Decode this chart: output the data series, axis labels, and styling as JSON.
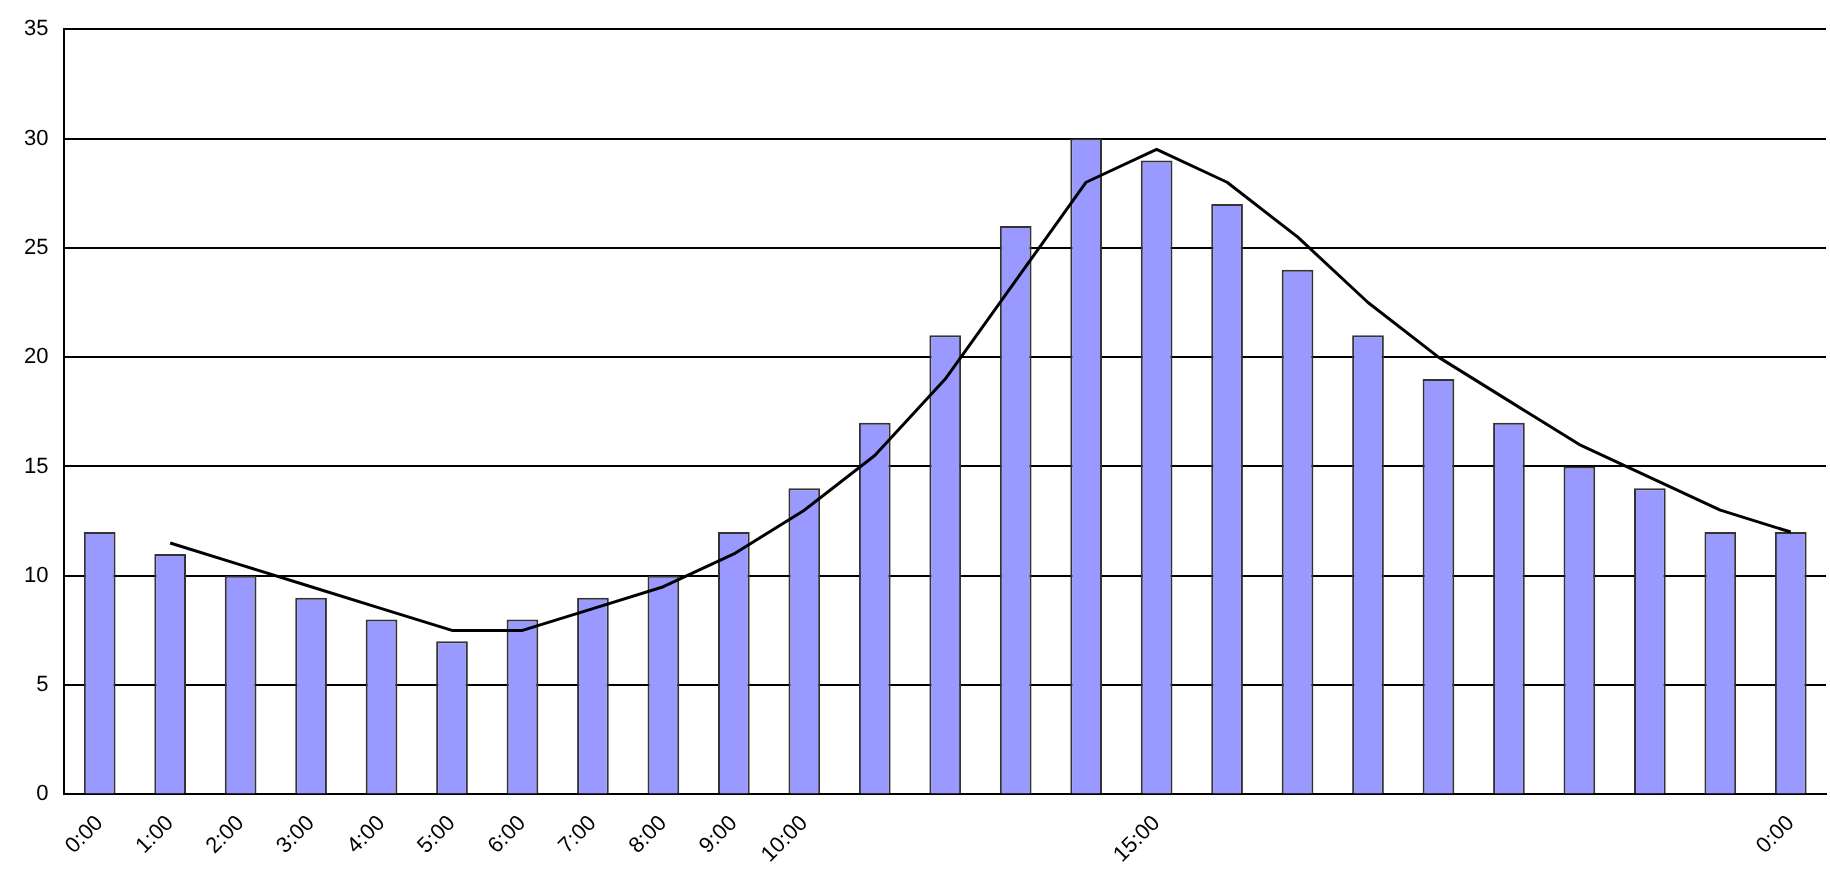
{
  "chart_data": {
    "type": "bar",
    "categories": [
      "0:00",
      "1:00",
      "2:00",
      "3:00",
      "4:00",
      "5:00",
      "6:00",
      "7:00",
      "8:00",
      "9:00",
      "10:00",
      null,
      null,
      null,
      null,
      "15:00",
      null,
      null,
      null,
      null,
      null,
      null,
      null,
      null,
      "0:00"
    ],
    "series": [
      {
        "color": "#9999ff",
        "values": [
          12,
          11,
          10,
          9,
          8,
          7,
          8,
          9,
          10,
          12,
          14,
          17,
          21,
          26,
          30,
          29,
          27,
          24,
          21,
          19,
          17,
          15,
          14,
          12,
          12
        ]
      },
      {
        "type": "line",
        "color": "#000000",
        "values": [
          null,
          11.5,
          10.5,
          9.5,
          8.5,
          7.5,
          7.5,
          8.5,
          9.5,
          11,
          13,
          15.5,
          19,
          23.5,
          28,
          29.5,
          28,
          25.5,
          22.5,
          20,
          18,
          16,
          14.5,
          13,
          12
        ]
      }
    ],
    "ylim": [
      0,
      35
    ],
    "yticks": [
      0,
      5,
      10,
      15,
      20,
      25,
      30,
      35
    ],
    "grid": "y",
    "legend": false,
    "marker": "none",
    "line_style": "solid"
  }
}
